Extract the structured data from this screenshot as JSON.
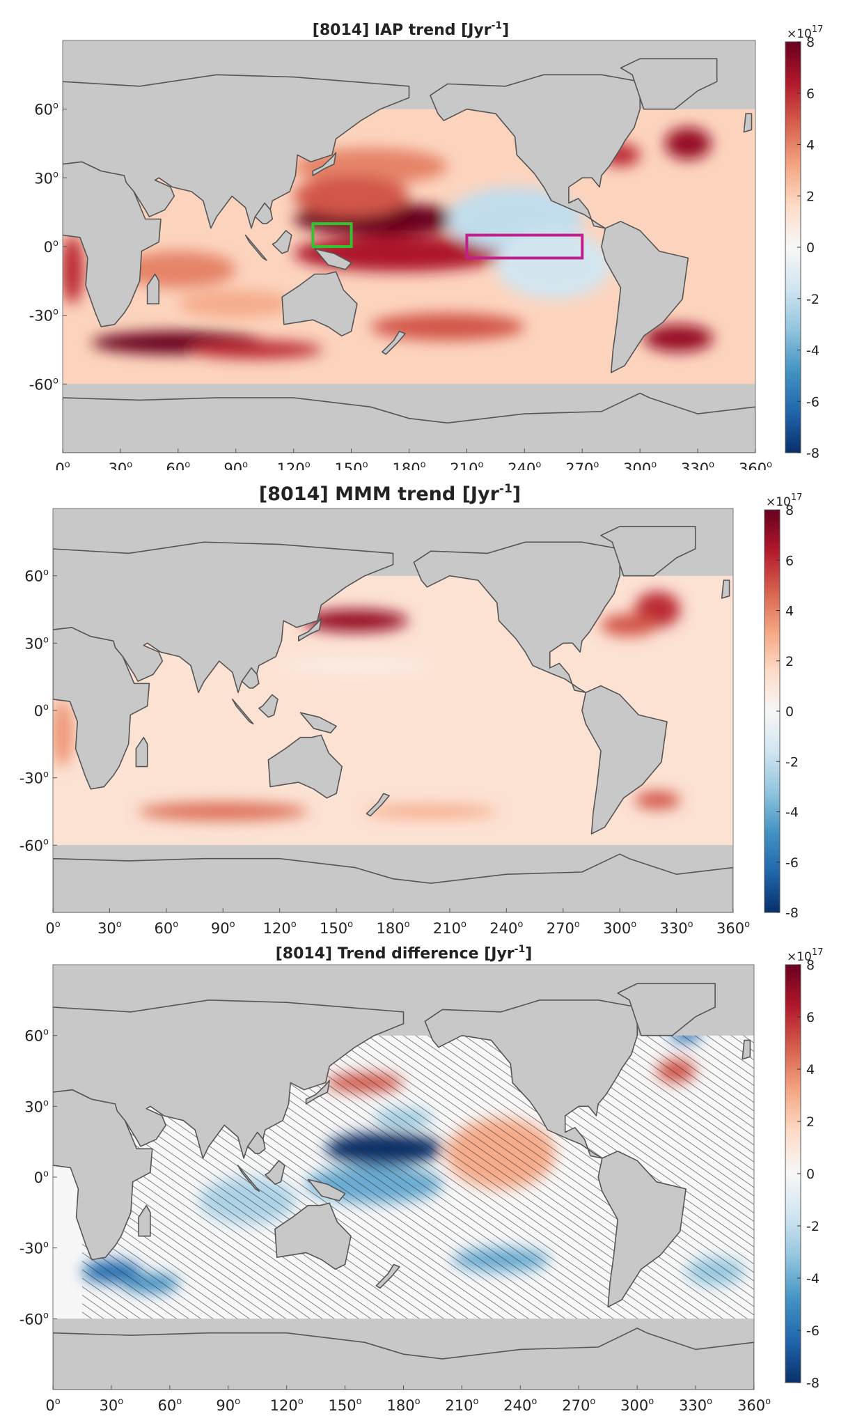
{
  "chart_data": [
    {
      "type": "heatmap",
      "title": "[8014] IAP trend [Jyr",
      "title_sup": "-1",
      "title_end": "]",
      "x_ticks": [
        "0",
        "30",
        "60",
        "90",
        "120",
        "150",
        "180",
        "210",
        "240",
        "270",
        "300",
        "330",
        "360"
      ],
      "y_ticks": [
        "60",
        "30",
        "0",
        "-30",
        "-60"
      ],
      "tick_degree_symbol": "o",
      "xlim": [
        0,
        360
      ],
      "ylim": [
        -90,
        90
      ],
      "colorbar": {
        "ticks": [
          "8",
          "6",
          "4",
          "2",
          "0",
          "-2",
          "-4",
          "-6",
          "-8"
        ],
        "range": [
          -8,
          8
        ],
        "multiplier": "×10",
        "exponent": "17",
        "colormap": [
          "#08306b",
          "#2166ac",
          "#4393c3",
          "#92c5de",
          "#d1e5f0",
          "#f7f7f7",
          "#fddbc7",
          "#f4a582",
          "#d6604d",
          "#b2182b",
          "#67001f"
        ]
      },
      "land_color": "#c8c8c8",
      "coast_color": "#555555",
      "regions_of_interest": [
        {
          "label": "Western Pacific box",
          "color": "#2fc52f",
          "lon": [
            130,
            150
          ],
          "lat": [
            0,
            10
          ]
        },
        {
          "label": "Eastern equatorial Pacific box",
          "color": "#c0208c",
          "lon": [
            210,
            270
          ],
          "lat": [
            -5,
            5
          ]
        }
      ],
      "features": [
        {
          "lon": 165,
          "lat": 12,
          "value": 8
        },
        {
          "lon": 175,
          "lat": -3,
          "value": 7
        },
        {
          "lon": 160,
          "lat": 35,
          "value": 5
        },
        {
          "lon": 240,
          "lat": 10,
          "value": -2
        },
        {
          "lon": 250,
          "lat": -10,
          "value": -2
        },
        {
          "lon": 60,
          "lat": -42,
          "value": 8
        },
        {
          "lon": 320,
          "lat": -40,
          "value": 7
        },
        {
          "lon": 325,
          "lat": 45,
          "value": 7
        }
      ]
    },
    {
      "type": "heatmap",
      "title": "[8014] MMM trend [Jyr",
      "title_sup": "-1",
      "title_end": "]",
      "x_ticks": [
        "0",
        "30",
        "60",
        "90",
        "120",
        "150",
        "180",
        "210",
        "240",
        "270",
        "300",
        "330",
        "360"
      ],
      "y_ticks": [
        "60",
        "30",
        "0",
        "-30",
        "-60"
      ],
      "tick_degree_symbol": "o",
      "xlim": [
        0,
        360
      ],
      "ylim": [
        -90,
        90
      ],
      "colorbar": {
        "ticks": [
          "8",
          "6",
          "4",
          "2",
          "0",
          "-2",
          "-4",
          "-6",
          "-8"
        ],
        "range": [
          -8,
          8
        ],
        "multiplier": "×10",
        "exponent": "17",
        "colormap": [
          "#08306b",
          "#2166ac",
          "#4393c3",
          "#92c5de",
          "#d1e5f0",
          "#f7f7f7",
          "#fddbc7",
          "#f4a582",
          "#d6604d",
          "#b2182b",
          "#67001f"
        ]
      },
      "land_color": "#c8c8c8",
      "coast_color": "#555555",
      "features": [
        {
          "lon": 160,
          "lat": 40,
          "value": 7
        },
        {
          "lon": 320,
          "lat": 45,
          "value": 6
        },
        {
          "lon": 160,
          "lat": 20,
          "value": 1
        },
        {
          "lon": 90,
          "lat": -45,
          "value": 4
        },
        {
          "lon": 200,
          "lat": -45,
          "value": 3
        }
      ]
    },
    {
      "type": "heatmap",
      "title": "[8014] Trend difference [Jyr",
      "title_sup": "-1",
      "title_end": "]",
      "x_ticks": [
        "0",
        "30",
        "60",
        "90",
        "120",
        "150",
        "180",
        "210",
        "240",
        "270",
        "300",
        "330",
        "360"
      ],
      "y_ticks": [
        "60",
        "30",
        "0",
        "-30",
        "-60"
      ],
      "tick_degree_symbol": "o",
      "xlim": [
        0,
        360
      ],
      "ylim": [
        -90,
        90
      ],
      "colorbar": {
        "ticks": [
          "8",
          "6",
          "4",
          "2",
          "0",
          "-2",
          "-4",
          "-6",
          "-8"
        ],
        "range": [
          -8,
          8
        ],
        "multiplier": "×10",
        "exponent": "17",
        "colormap": [
          "#08306b",
          "#2166ac",
          "#4393c3",
          "#92c5de",
          "#d1e5f0",
          "#f7f7f7",
          "#fddbc7",
          "#f4a582",
          "#d6604d",
          "#b2182b",
          "#67001f"
        ]
      },
      "land_color": "#c8c8c8",
      "coast_color": "#555555",
      "hatching": "diagonal lines mark areas where the difference is not significant",
      "features": [
        {
          "lon": 170,
          "lat": 12,
          "value": -8
        },
        {
          "lon": 230,
          "lat": 10,
          "value": 3
        },
        {
          "lon": 160,
          "lat": 40,
          "value": 5
        },
        {
          "lon": 320,
          "lat": 45,
          "value": 5
        },
        {
          "lon": 30,
          "lat": -40,
          "value": -6
        },
        {
          "lon": 230,
          "lat": -35,
          "value": -4
        }
      ]
    }
  ]
}
